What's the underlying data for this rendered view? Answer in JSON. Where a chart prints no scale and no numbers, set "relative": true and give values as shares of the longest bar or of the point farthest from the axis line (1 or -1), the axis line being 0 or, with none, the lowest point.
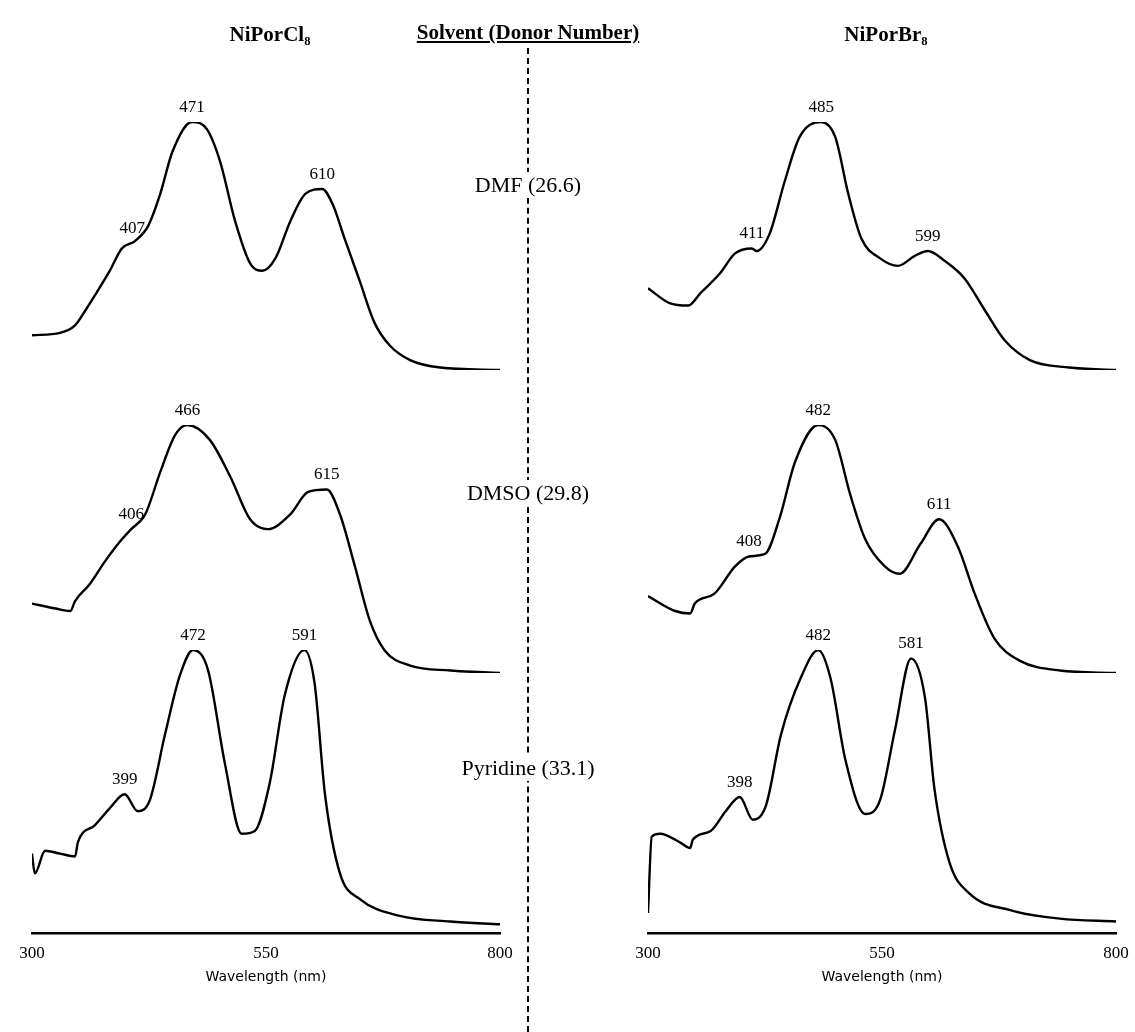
{
  "chart_data": [
    {
      "type": "line",
      "title": "NiPorCl₈",
      "relative": true,
      "marker": "none",
      "tick_labels": false,
      "xlim": [
        300,
        800
      ],
      "color": "#000000",
      "x": [
        300,
        330,
        346,
        357,
        367,
        383,
        396,
        410,
        424,
        437,
        450,
        471,
        487,
        501,
        517,
        533,
        546,
        560,
        576,
        592,
        610,
        621,
        634,
        650,
        666,
        682,
        704,
        736,
        800
      ],
      "values": [
        0.14,
        0.15,
        0.18,
        0.24,
        0.3,
        0.4,
        0.49,
        0.52,
        0.58,
        0.71,
        0.88,
        1.0,
        0.97,
        0.84,
        0.6,
        0.43,
        0.4,
        0.45,
        0.6,
        0.71,
        0.73,
        0.67,
        0.53,
        0.36,
        0.19,
        0.1,
        0.04,
        0.01,
        0
      ],
      "annotations": [
        {
          "text": "407",
          "x": 407,
          "y": 0.51
        },
        {
          "text": "471",
          "x": 471,
          "y": 1.0
        },
        {
          "text": "610",
          "x": 610,
          "y": 0.73
        }
      ]
    },
    {
      "type": "line",
      "title": "NiPorBr₈",
      "relative": true,
      "marker": "none",
      "tick_labels": false,
      "xlim": [
        300,
        800
      ],
      "color": "#000000",
      "x": [
        300,
        323,
        343,
        356,
        377,
        393,
        411,
        416,
        430,
        446,
        462,
        485,
        500,
        514,
        528,
        548,
        567,
        585,
        599,
        617,
        638,
        660,
        681,
        708,
        750,
        800
      ],
      "values": [
        0.33,
        0.27,
        0.26,
        0.31,
        0.39,
        0.47,
        0.49,
        0.48,
        0.55,
        0.76,
        0.94,
        1.0,
        0.94,
        0.71,
        0.53,
        0.45,
        0.42,
        0.46,
        0.48,
        0.44,
        0.37,
        0.24,
        0.12,
        0.04,
        0.01,
        0
      ],
      "annotations": [
        {
          "text": "411",
          "x": 411,
          "y": 0.49
        },
        {
          "text": "485",
          "x": 485,
          "y": 1.0
        },
        {
          "text": "599",
          "x": 599,
          "y": 0.48
        }
      ]
    },
    {
      "type": "line",
      "relative": true,
      "marker": "none",
      "tick_labels": false,
      "xlim": [
        300,
        800
      ],
      "color": "#000000",
      "x": [
        300,
        325,
        341,
        346,
        362,
        378,
        394,
        406,
        421,
        437,
        453,
        466,
        490,
        512,
        533,
        552,
        576,
        595,
        615,
        629,
        645,
        661,
        677,
        704,
        747,
        800
      ],
      "values": [
        0.28,
        0.26,
        0.25,
        0.29,
        0.36,
        0.45,
        0.53,
        0.58,
        0.64,
        0.81,
        0.96,
        1.0,
        0.94,
        0.79,
        0.62,
        0.58,
        0.64,
        0.73,
        0.74,
        0.64,
        0.43,
        0.21,
        0.09,
        0.03,
        0.01,
        0
      ],
      "annotations": [
        {
          "text": "406",
          "x": 406,
          "y": 0.58
        },
        {
          "text": "466",
          "x": 466,
          "y": 1.0
        },
        {
          "text": "615",
          "x": 615,
          "y": 0.74
        }
      ]
    },
    {
      "type": "line",
      "relative": true,
      "marker": "none",
      "tick_labels": false,
      "xlim": [
        300,
        800
      ],
      "color": "#000000",
      "x": [
        300,
        329,
        345,
        350,
        371,
        393,
        408,
        425,
        441,
        457,
        482,
        500,
        516,
        532,
        553,
        569,
        591,
        611,
        631,
        649,
        670,
        697,
        740,
        800
      ],
      "values": [
        0.31,
        0.25,
        0.24,
        0.28,
        0.32,
        0.43,
        0.47,
        0.48,
        0.63,
        0.85,
        1.0,
        0.94,
        0.72,
        0.54,
        0.43,
        0.4,
        0.52,
        0.62,
        0.51,
        0.32,
        0.14,
        0.05,
        0.01,
        0
      ],
      "annotations": [
        {
          "text": "408",
          "x": 408,
          "y": 0.47
        },
        {
          "text": "482",
          "x": 482,
          "y": 1.0
        },
        {
          "text": "611",
          "x": 611,
          "y": 0.62
        }
      ]
    },
    {
      "type": "line",
      "relative": true,
      "marker": "none",
      "tick_labels": "x",
      "xlim": [
        300,
        800
      ],
      "xticks": [
        300,
        550,
        800
      ],
      "xlabel": "Wavelength (nm)",
      "color": "#000000",
      "x": [
        300,
        303,
        314,
        330,
        346,
        349,
        367,
        383,
        399,
        413,
        426,
        442,
        458,
        472,
        488,
        506,
        524,
        538,
        554,
        570,
        591,
        602,
        613,
        629,
        650,
        693,
        747,
        800
      ],
      "values": [
        0.28,
        0.21,
        0.29,
        0.28,
        0.27,
        0.32,
        0.38,
        0.44,
        0.49,
        0.43,
        0.47,
        0.7,
        0.91,
        1.0,
        0.93,
        0.6,
        0.35,
        0.36,
        0.53,
        0.84,
        1.0,
        0.88,
        0.49,
        0.21,
        0.12,
        0.06,
        0.04,
        0.03
      ],
      "annotations": [
        {
          "text": "399",
          "x": 399,
          "y": 0.49
        },
        {
          "text": "472",
          "x": 472,
          "y": 1.0
        },
        {
          "text": "591",
          "x": 591,
          "y": 1.0
        }
      ]
    },
    {
      "type": "line",
      "relative": true,
      "marker": "none",
      "tick_labels": "x",
      "xlim": [
        300,
        800
      ],
      "xticks": [
        300,
        550,
        800
      ],
      "xlabel": "Wavelength (nm)",
      "color": "#000000",
      "x": [
        300,
        304,
        313,
        334,
        345,
        348,
        367,
        383,
        398,
        412,
        426,
        442,
        463,
        482,
        495,
        511,
        532,
        548,
        564,
        581,
        596,
        606,
        622,
        643,
        687,
        740,
        800
      ],
      "values": [
        0.07,
        0.34,
        0.35,
        0.32,
        0.3,
        0.33,
        0.36,
        0.43,
        0.48,
        0.4,
        0.45,
        0.7,
        0.9,
        1.0,
        0.9,
        0.61,
        0.42,
        0.47,
        0.72,
        0.97,
        0.83,
        0.51,
        0.25,
        0.14,
        0.08,
        0.05,
        0.04
      ],
      "annotations": [
        {
          "text": "398",
          "x": 398,
          "y": 0.48
        },
        {
          "text": "482",
          "x": 482,
          "y": 1.0
        },
        {
          "text": "581",
          "x": 581,
          "y": 0.97
        }
      ]
    },
    {
      "type": "other",
      "title": "Solvent (Donor Number)",
      "annotations": [
        "DMF (26.6)",
        "DMSO (29.8)",
        "Pyridine (33.1)"
      ]
    }
  ]
}
